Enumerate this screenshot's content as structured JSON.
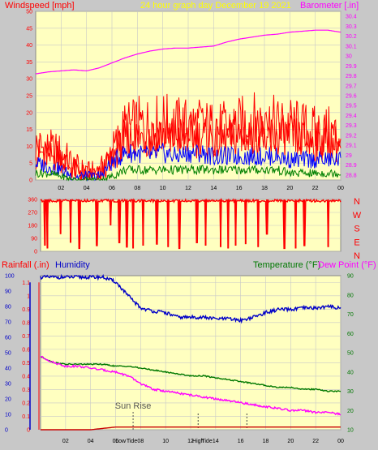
{
  "header": {
    "left": "Windspeed [mph]",
    "center": "24 hour graph day   December 19 2021",
    "right": "Barometer [.in]"
  },
  "colors": {
    "background": "#c8c8c8",
    "plot_bg": "#ffffc0",
    "grid": "#c8c8c8",
    "wind": "#ff0000",
    "gust_blue": "#0000ff",
    "gust_green": "#008000",
    "barometer": "#ff00ff",
    "humidity": "#0000c8",
    "temperature": "#007800",
    "dew_point": "#ff00ff",
    "rain": "#c80000",
    "title_yellow": "#ffff00"
  },
  "chart_data": [
    {
      "type": "line",
      "name": "wind-and-barometer",
      "x_ticks": [
        "02",
        "04",
        "06",
        "08",
        "10",
        "12",
        "14",
        "16",
        "18",
        "20",
        "22",
        "00"
      ],
      "left_axis": {
        "label": "Windspeed [mph]",
        "ticks": [
          "0",
          "5",
          "10",
          "15",
          "20",
          "25",
          "30",
          "35",
          "40",
          "45",
          "50"
        ],
        "range": [
          0,
          50
        ]
      },
      "right_axis": {
        "label": "Barometer [.in]",
        "ticks": [
          "28.8",
          "28.9",
          "29",
          "29.1",
          "29.2",
          "29.3",
          "29.4",
          "29.5",
          "29.6",
          "29.7",
          "29.8",
          "29.9",
          "30",
          "30.1",
          "30.2",
          "30.3",
          "30.4"
        ],
        "range": [
          28.75,
          30.45
        ]
      },
      "series": [
        {
          "key": "barometer",
          "x": [
            0,
            1,
            2,
            3,
            4,
            5,
            6,
            7,
            8,
            9,
            10,
            11,
            12,
            13,
            14,
            15,
            16,
            17,
            18,
            19,
            20,
            21,
            22,
            23,
            24
          ],
          "values": [
            29.82,
            29.84,
            29.85,
            29.86,
            29.85,
            29.88,
            29.93,
            29.98,
            30.02,
            30.05,
            30.07,
            30.08,
            30.08,
            30.09,
            30.1,
            30.14,
            30.17,
            30.19,
            30.21,
            30.22,
            30.24,
            30.25,
            30.26,
            30.26,
            30.24
          ]
        },
        {
          "key": "wind_max",
          "x": [
            0,
            1,
            2,
            3,
            4,
            5,
            6,
            7,
            8,
            9,
            10,
            11,
            12,
            13,
            14,
            15,
            16,
            17,
            18,
            19,
            20,
            21,
            22,
            23,
            24
          ],
          "values": [
            10,
            9,
            8,
            4,
            2,
            2,
            8,
            15,
            16,
            16,
            17,
            16,
            16,
            16,
            15,
            15,
            16,
            17,
            17,
            16,
            16,
            15,
            14,
            14,
            13
          ]
        },
        {
          "key": "wind_avg",
          "x": [
            0,
            1,
            2,
            3,
            4,
            5,
            6,
            7,
            8,
            9,
            10,
            11,
            12,
            13,
            14,
            15,
            16,
            17,
            18,
            19,
            20,
            21,
            22,
            23,
            24
          ],
          "values": [
            5,
            4,
            3,
            1,
            1,
            1,
            5,
            8,
            8,
            7,
            8,
            7,
            8,
            8,
            7,
            7,
            7,
            7,
            7,
            7,
            6,
            6,
            6,
            6,
            6
          ]
        },
        {
          "key": "wind_min",
          "x": [
            0,
            1,
            2,
            3,
            4,
            5,
            6,
            7,
            8,
            9,
            10,
            11,
            12,
            13,
            14,
            15,
            16,
            17,
            18,
            19,
            20,
            21,
            22,
            23,
            24
          ],
          "values": [
            2,
            2,
            1,
            0,
            0,
            0,
            1,
            3,
            3,
            3,
            3,
            3,
            3,
            3,
            3,
            3,
            3,
            3,
            3,
            3,
            2,
            2,
            2,
            2,
            2
          ]
        }
      ]
    },
    {
      "type": "scatter",
      "name": "wind-direction",
      "left_ticks": [
        "0",
        "90",
        "180",
        "270",
        "360"
      ],
      "right_labels": [
        "N",
        "W",
        "S",
        "E",
        "N"
      ],
      "range": [
        0,
        360
      ],
      "dominant_direction": 360,
      "dips": [
        {
          "x": 0.35,
          "value": 40
        },
        {
          "x": 0.55,
          "value": 20
        },
        {
          "x": 1.6,
          "value": 120
        },
        {
          "x": 2.4,
          "value": 60
        },
        {
          "x": 3.1,
          "value": 20
        },
        {
          "x": 4.5,
          "value": 40
        },
        {
          "x": 5.6,
          "value": 180
        },
        {
          "x": 6.3,
          "value": 60
        },
        {
          "x": 6.9,
          "value": 30
        },
        {
          "x": 7.4,
          "value": 20
        },
        {
          "x": 8.2,
          "value": 40
        },
        {
          "x": 9.3,
          "value": 50
        },
        {
          "x": 10.2,
          "value": 30
        },
        {
          "x": 11.1,
          "value": 20
        },
        {
          "x": 12.5,
          "value": 60
        },
        {
          "x": 13.2,
          "value": 40
        },
        {
          "x": 14.4,
          "value": 30
        },
        {
          "x": 15.0,
          "value": 20
        },
        {
          "x": 15.6,
          "value": 40
        },
        {
          "x": 16.4,
          "value": 50
        },
        {
          "x": 17.4,
          "value": 30
        },
        {
          "x": 18.1,
          "value": 120
        },
        {
          "x": 19.5,
          "value": 20
        },
        {
          "x": 20.4,
          "value": 20
        },
        {
          "x": 21.1,
          "value": 40
        },
        {
          "x": 23.0,
          "value": 30
        }
      ]
    },
    {
      "type": "line",
      "name": "rain-humidity-temp",
      "x_ticks": [
        "02",
        "04",
        "06",
        "08",
        "10",
        "12",
        "14",
        "16",
        "18",
        "20",
        "22",
        "00"
      ],
      "rain_axis": {
        "label": "Rainfall (.in)",
        "ticks": [
          "0",
          "0.1",
          "0.2",
          "0.3",
          "0.4",
          "0.5",
          "0.6",
          "0.7",
          "0.8",
          "0.9",
          "1",
          "1.1"
        ],
        "range": [
          0,
          1.15
        ]
      },
      "humidity_axis": {
        "label": "Humidity",
        "ticks": [
          "0",
          "10",
          "20",
          "30",
          "40",
          "50",
          "60",
          "70",
          "80",
          "90",
          "100"
        ],
        "range": [
          0,
          100
        ]
      },
      "temperature_axis": {
        "label": "Temperature (°F)",
        "secondary_label": "Dew Point (°F)",
        "ticks": [
          "10",
          "20",
          "30",
          "40",
          "50",
          "60",
          "70",
          "80",
          "90"
        ],
        "range": [
          10,
          90
        ]
      },
      "annotations": [
        {
          "text": "Sun Rise",
          "x": 7.4
        },
        {
          "text": "Low",
          "x": 6.4
        },
        {
          "text": "Tide",
          "x": 7.3
        },
        {
          "text": "High",
          "x": 12.6
        },
        {
          "text": "Tide",
          "x": 13.3
        }
      ],
      "series": [
        {
          "key": "humidity",
          "x": [
            0,
            1,
            2,
            3,
            4,
            5,
            6,
            7,
            8,
            9,
            10,
            11,
            12,
            13,
            14,
            15,
            16,
            17,
            18,
            19,
            20,
            21,
            22,
            23,
            24
          ],
          "values": [
            99,
            99,
            99,
            99,
            99,
            99,
            96,
            87,
            79,
            77,
            76,
            73,
            73,
            73,
            72,
            72,
            71,
            73,
            76,
            78,
            78,
            79,
            79,
            80,
            79
          ]
        },
        {
          "key": "temperature",
          "x": [
            0,
            1,
            2,
            3,
            4,
            5,
            6,
            7,
            8,
            9,
            10,
            11,
            12,
            13,
            14,
            15,
            16,
            17,
            18,
            19,
            20,
            21,
            22,
            23,
            24
          ],
          "values": [
            48,
            45,
            44,
            44,
            44,
            44,
            43,
            43,
            42,
            41,
            40,
            39,
            38,
            38,
            37,
            36,
            35,
            34,
            33,
            32,
            32,
            31,
            31,
            30,
            30
          ]
        },
        {
          "key": "dew_point",
          "x": [
            0,
            1,
            2,
            3,
            4,
            5,
            6,
            7,
            8,
            9,
            10,
            11,
            12,
            13,
            14,
            15,
            16,
            17,
            18,
            19,
            20,
            21,
            22,
            23,
            24
          ],
          "values": [
            48,
            45,
            43,
            43,
            42,
            41,
            40,
            38,
            34,
            31,
            30,
            29,
            28,
            27,
            26,
            25,
            24,
            23,
            22,
            21,
            20,
            20,
            19,
            19,
            18
          ]
        },
        {
          "key": "rain",
          "x": [
            0,
            1,
            2,
            3,
            4,
            5,
            6,
            7,
            8,
            9,
            10,
            11,
            12,
            13,
            14,
            15,
            16,
            17,
            18,
            19,
            20,
            21,
            22,
            23,
            24
          ],
          "values": [
            0,
            0,
            0,
            0,
            0,
            0.01,
            0.02,
            0.02,
            0.02,
            0.02,
            0.02,
            0.02,
            0.02,
            0.02,
            0.02,
            0.02,
            0.02,
            0.02,
            0.02,
            0.02,
            0.02,
            0.02,
            0.02,
            0.02,
            0.02
          ]
        }
      ]
    }
  ],
  "bottom": {
    "rain_label": "Rainfall (.in)",
    "humidity_label": "Humidity",
    "temperature_label": "Temperature (°F)",
    "dewpoint_label": "Dew Point (°F)"
  }
}
